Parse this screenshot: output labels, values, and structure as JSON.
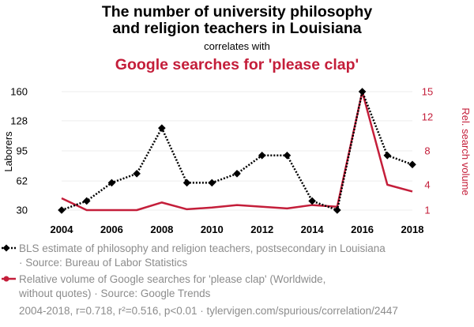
{
  "colors": {
    "series1": "#000000",
    "series2": "#c41e3a",
    "muted": "#8c8c8c",
    "grid": "#eeeeee"
  },
  "chart_data": {
    "type": "line",
    "title_line1": "The number of university philosophy",
    "title_line2": "and religion teachers in Louisiana",
    "connector": "correlates with",
    "subtitle": "Google searches for 'please clap'",
    "ylabel_left": "Laborers",
    "ylabel_right": "Rel. search volume",
    "x": [
      2004,
      2005,
      2006,
      2007,
      2008,
      2009,
      2010,
      2011,
      2012,
      2013,
      2014,
      2015,
      2016,
      2017,
      2018
    ],
    "x_ticks": [
      "2004",
      "2006",
      "2008",
      "2010",
      "2012",
      "2014",
      "2016",
      "2018"
    ],
    "y_left_ticks": [
      "30",
      "62",
      "95",
      "128",
      "160"
    ],
    "y_right_ticks": [
      "1",
      "4",
      "8",
      "12",
      "15"
    ],
    "ylim_left": [
      30,
      160
    ],
    "ylim_right": [
      1,
      15
    ],
    "grid": true,
    "series": [
      {
        "values": [
          30,
          40,
          60,
          70,
          120,
          60,
          60,
          70,
          90,
          90,
          40,
          30,
          160,
          90,
          80
        ],
        "axis": "left",
        "style": "dotted",
        "marker": "diamond"
      },
      {
        "values": [
          2.4,
          1.0,
          1.0,
          1.0,
          1.9,
          1.1,
          1.3,
          1.6,
          1.4,
          1.2,
          1.6,
          1.4,
          15,
          4.0,
          3.2
        ],
        "axis": "right",
        "style": "solid",
        "marker": "none"
      }
    ],
    "legend": [
      {
        "line1": "BLS estimate of philosophy and religion teachers, postsecondary in Louisiana",
        "line2": "· Source: Bureau of Labor Statistics"
      },
      {
        "line1": "Relative volume of Google searches for 'please clap' (Worldwide,",
        "line2": "without quotes) · Source: Google Trends"
      }
    ],
    "legend_position": "bottom",
    "footer": "2004-2018, r=0.718, r²=0.516, p<0.01 · tylervigen.com/spurious/correlation/2447"
  }
}
